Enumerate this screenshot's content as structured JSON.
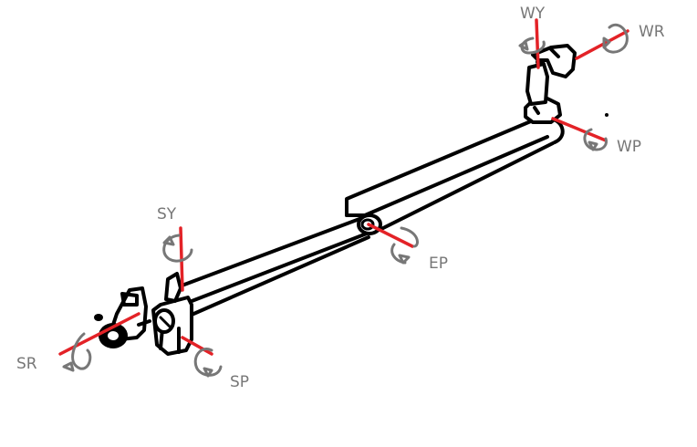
{
  "colors": {
    "axis": "#e32227",
    "annotation": "#777777",
    "structure": "#000000"
  },
  "joints": {
    "shoulder_roll": {
      "label": "SR"
    },
    "shoulder_yaw": {
      "label": "SY"
    },
    "shoulder_pitch": {
      "label": "SP"
    },
    "elbow_pitch": {
      "label": "EP"
    },
    "wrist_pitch": {
      "label": "WP"
    },
    "wrist_yaw": {
      "label": "WY"
    },
    "wrist_roll": {
      "label": "WR"
    }
  }
}
